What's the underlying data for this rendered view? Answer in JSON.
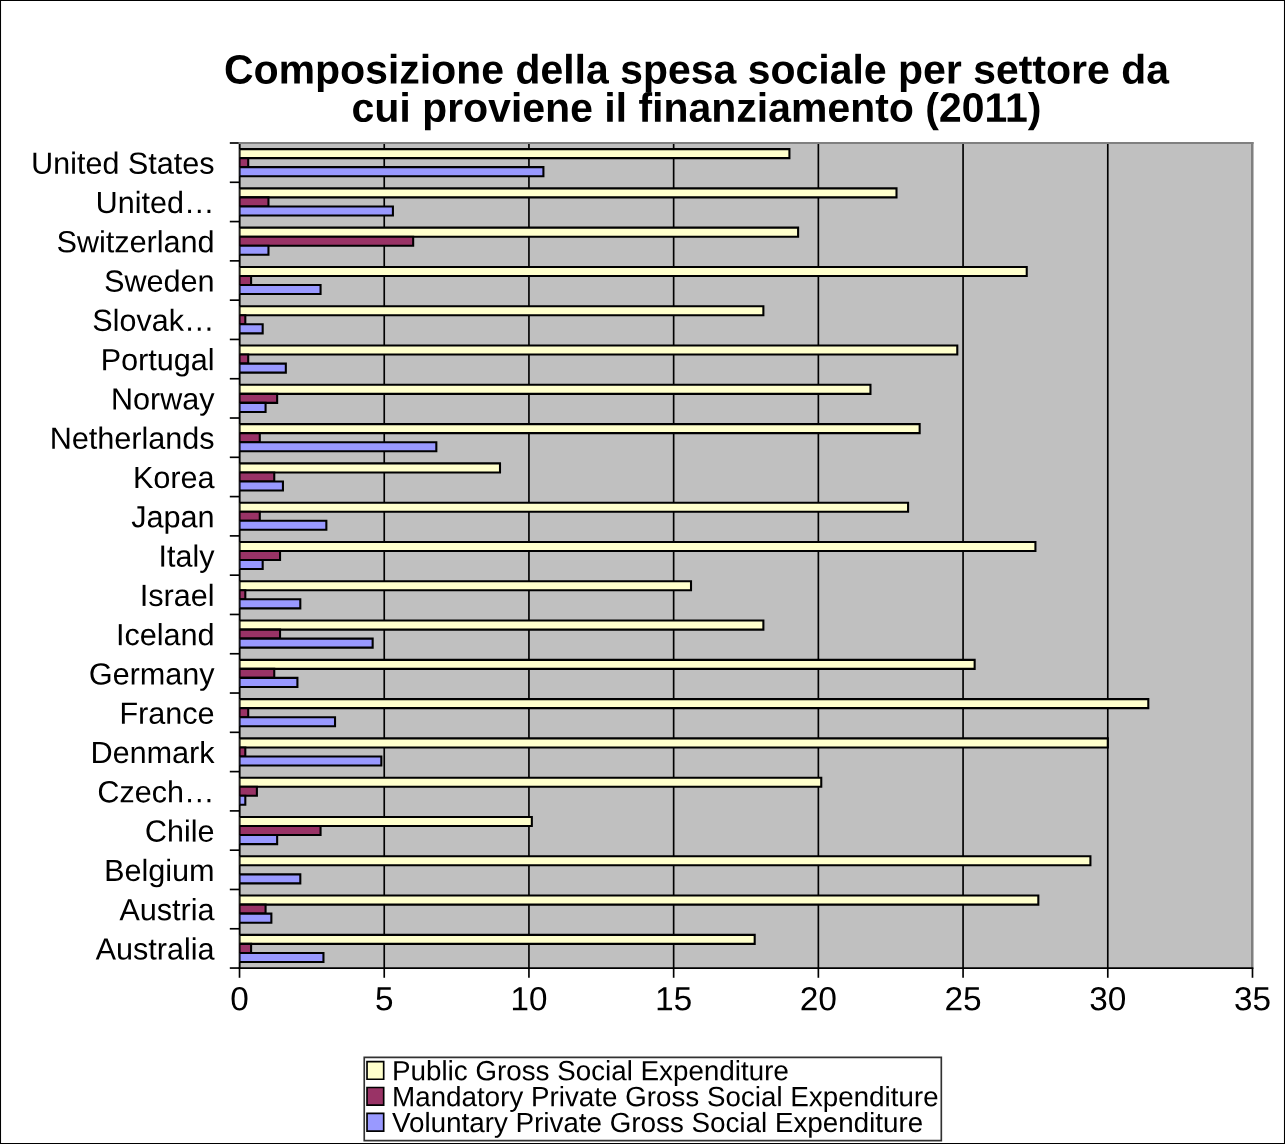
{
  "chart_data": {
    "type": "bar",
    "orientation": "horizontal",
    "title": "Composizione della spesa sociale per settore da\ncui proviene il finanziamento (2011)",
    "categories": [
      "United States",
      "United…",
      "Switzerland",
      "Sweden",
      "Slovak…",
      "Portugal",
      "Norway",
      "Netherlands",
      "Korea",
      "Japan",
      "Italy",
      "Israel",
      "Iceland",
      "Germany",
      "France",
      "Denmark",
      "Czech…",
      "Chile",
      "Belgium",
      "Austria",
      "Australia"
    ],
    "series": [
      {
        "name": "Public Gross Social Expenditure",
        "color": "#ffffcc",
        "values": [
          19.0,
          22.7,
          19.3,
          27.2,
          18.1,
          24.8,
          21.8,
          23.5,
          9.0,
          23.1,
          27.5,
          15.6,
          18.1,
          25.4,
          31.4,
          30.0,
          20.1,
          10.1,
          29.4,
          27.6,
          17.8
        ]
      },
      {
        "name": "Mandatory Private Gross Social Expenditure",
        "color": "#993366",
        "values": [
          0.3,
          1.0,
          6.0,
          0.4,
          0.2,
          0.3,
          1.3,
          0.7,
          1.2,
          0.7,
          1.4,
          0.2,
          1.4,
          1.2,
          0.3,
          0.2,
          0.6,
          2.8,
          null,
          0.9,
          0.4
        ]
      },
      {
        "name": "Voluntary Private Gross Social Expenditure",
        "color": "#9999ff",
        "values": [
          10.5,
          5.3,
          1.0,
          2.8,
          0.8,
          1.6,
          0.9,
          6.8,
          1.5,
          3.0,
          0.8,
          2.1,
          4.6,
          2.0,
          3.3,
          4.9,
          0.2,
          1.3,
          2.1,
          1.1,
          2.9
        ]
      }
    ],
    "xlim": [
      0,
      35
    ],
    "xticks": [
      0,
      5,
      10,
      15,
      20,
      25,
      30,
      35
    ],
    "grid": "x",
    "legend": "bottom"
  }
}
